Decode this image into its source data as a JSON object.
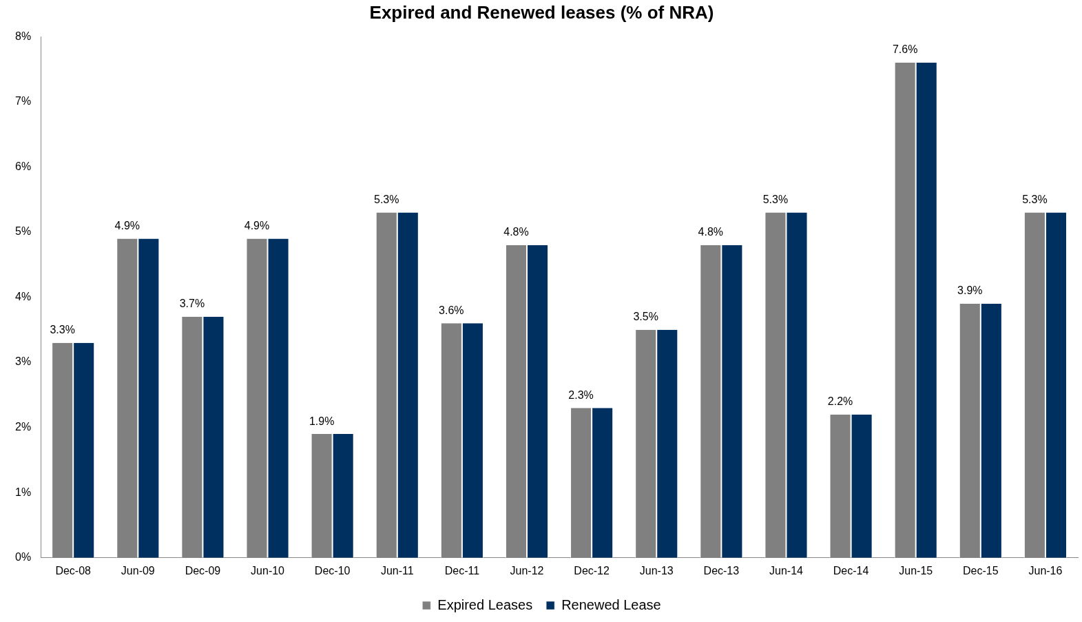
{
  "chart_data": {
    "type": "bar",
    "title": "Expired and Renewed leases (% of NRA)",
    "categories": [
      "Dec-08",
      "Jun-09",
      "Dec-09",
      "Jun-10",
      "Dec-10",
      "Jun-11",
      "Dec-11",
      "Jun-12",
      "Dec-12",
      "Jun-13",
      "Dec-13",
      "Jun-14",
      "Dec-14",
      "Jun-15",
      "Dec-15",
      "Jun-16"
    ],
    "series": [
      {
        "name": "Expired Leases",
        "color": "#808080",
        "values": [
          3.3,
          4.9,
          3.7,
          4.9,
          1.9,
          5.3,
          3.6,
          4.8,
          2.3,
          3.5,
          4.8,
          5.3,
          2.2,
          7.6,
          3.9,
          5.3
        ],
        "value_labels": [
          "3.3%",
          "4.9%",
          "3.7%",
          "4.9%",
          "1.9%",
          "5.3%",
          "3.6%",
          "4.8%",
          "2.3%",
          "3.5%",
          "4.8%",
          "5.3%",
          "2.2%",
          "7.6%",
          "3.9%",
          "5.3%"
        ]
      },
      {
        "name": "Renewed Lease",
        "color": "#00305f",
        "values": [
          3.3,
          4.9,
          3.7,
          4.9,
          1.9,
          5.3,
          3.6,
          4.8,
          2.3,
          3.5,
          4.8,
          5.3,
          2.2,
          7.6,
          3.9,
          5.3
        ]
      }
    ],
    "ylim": [
      0,
      8
    ],
    "yticks": [
      {
        "value": 0,
        "label": "0%"
      },
      {
        "value": 1,
        "label": "1%"
      },
      {
        "value": 2,
        "label": "2%"
      },
      {
        "value": 3,
        "label": "3%"
      },
      {
        "value": 4,
        "label": "4%"
      },
      {
        "value": 5,
        "label": "5%"
      },
      {
        "value": 6,
        "label": "6%"
      },
      {
        "value": 7,
        "label": "7%"
      },
      {
        "value": 8,
        "label": "8%"
      }
    ],
    "grid": false,
    "legend": "bottom"
  }
}
